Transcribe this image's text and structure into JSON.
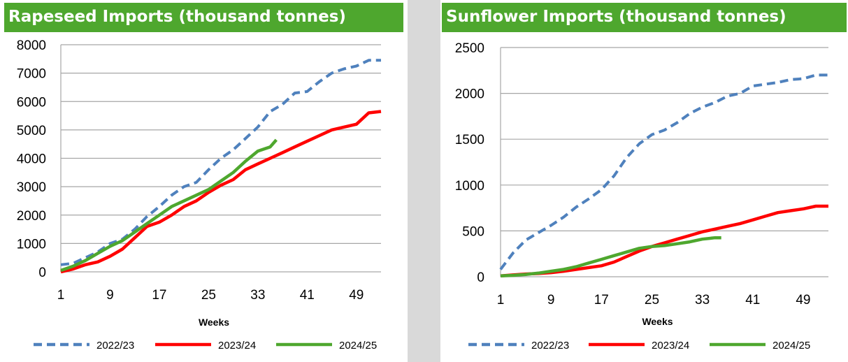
{
  "chart_data": [
    {
      "type": "line",
      "title": "Rapeseed Imports (thousand tonnes)",
      "xlabel": "Weeks",
      "ylabel": "",
      "xlim": [
        1,
        53
      ],
      "ylim": [
        0,
        8000
      ],
      "xticks": [
        1,
        9,
        17,
        25,
        33,
        41,
        49
      ],
      "yticks": [
        0,
        1000,
        2000,
        3000,
        4000,
        5000,
        6000,
        7000,
        8000
      ],
      "grid": true,
      "legend_position": "bottom",
      "series": [
        {
          "name": "2022/23",
          "color": "#4f81bd",
          "style": "dashed",
          "x": [
            1,
            3,
            5,
            7,
            9,
            11,
            13,
            15,
            17,
            19,
            21,
            23,
            25,
            27,
            29,
            31,
            33,
            35,
            37,
            39,
            41,
            43,
            45,
            47,
            49,
            51,
            53
          ],
          "y": [
            250,
            300,
            500,
            700,
            1000,
            1150,
            1500,
            1950,
            2300,
            2700,
            3000,
            3150,
            3600,
            4000,
            4300,
            4700,
            5100,
            5650,
            5900,
            6300,
            6350,
            6700,
            7000,
            7150,
            7250,
            7450,
            7450
          ]
        },
        {
          "name": "2023/24",
          "color": "#ff0000",
          "style": "solid",
          "x": [
            1,
            3,
            5,
            7,
            9,
            11,
            13,
            15,
            17,
            19,
            21,
            23,
            25,
            27,
            29,
            31,
            33,
            35,
            37,
            39,
            41,
            43,
            45,
            47,
            49,
            51,
            53
          ],
          "y": [
            0,
            100,
            250,
            350,
            550,
            800,
            1200,
            1600,
            1750,
            2000,
            2300,
            2500,
            2800,
            3050,
            3250,
            3600,
            3800,
            4000,
            4200,
            4400,
            4600,
            4800,
            5000,
            5100,
            5200,
            5600,
            5650
          ]
        },
        {
          "name": "2024/25",
          "color": "#4ea72e",
          "style": "solid",
          "x": [
            1,
            3,
            5,
            7,
            9,
            11,
            13,
            15,
            17,
            19,
            21,
            23,
            25,
            27,
            29,
            31,
            33,
            35,
            36
          ],
          "y": [
            50,
            200,
            400,
            650,
            900,
            1100,
            1400,
            1700,
            2000,
            2300,
            2500,
            2700,
            2900,
            3200,
            3500,
            3900,
            4250,
            4400,
            4650
          ]
        }
      ]
    },
    {
      "type": "line",
      "title": "Sunflower Imports (thousand tonnes)",
      "xlabel": "Weeks",
      "ylabel": "",
      "xlim": [
        1,
        53
      ],
      "ylim": [
        0,
        2500
      ],
      "xticks": [
        1,
        9,
        17,
        25,
        33,
        41,
        49
      ],
      "yticks": [
        0,
        500,
        1000,
        1500,
        2000,
        2500
      ],
      "grid": true,
      "legend_position": "bottom",
      "series": [
        {
          "name": "2022/23",
          "color": "#4f81bd",
          "style": "dashed",
          "x": [
            1,
            3,
            5,
            7,
            9,
            11,
            13,
            15,
            17,
            19,
            21,
            23,
            25,
            27,
            29,
            31,
            33,
            35,
            37,
            39,
            41,
            43,
            45,
            47,
            49,
            51,
            53
          ],
          "y": [
            80,
            260,
            400,
            480,
            560,
            650,
            760,
            850,
            950,
            1100,
            1300,
            1450,
            1550,
            1600,
            1680,
            1780,
            1850,
            1900,
            1970,
            2000,
            2080,
            2100,
            2120,
            2150,
            2160,
            2200,
            2200
          ]
        },
        {
          "name": "2023/24",
          "color": "#ff0000",
          "style": "solid",
          "x": [
            1,
            3,
            5,
            7,
            9,
            11,
            13,
            15,
            17,
            19,
            21,
            23,
            25,
            27,
            29,
            31,
            33,
            35,
            37,
            39,
            41,
            43,
            45,
            47,
            49,
            51,
            53
          ],
          "y": [
            10,
            20,
            30,
            35,
            45,
            60,
            80,
            100,
            120,
            160,
            220,
            280,
            330,
            370,
            410,
            450,
            490,
            520,
            550,
            580,
            620,
            660,
            700,
            720,
            740,
            770,
            770
          ]
        },
        {
          "name": "2024/25",
          "color": "#4ea72e",
          "style": "solid",
          "x": [
            1,
            3,
            5,
            7,
            9,
            11,
            13,
            15,
            17,
            19,
            21,
            23,
            25,
            27,
            29,
            31,
            33,
            35,
            36
          ],
          "y": [
            10,
            15,
            25,
            40,
            60,
            80,
            110,
            150,
            190,
            230,
            270,
            310,
            330,
            340,
            360,
            380,
            410,
            425,
            425
          ]
        }
      ]
    }
  ]
}
